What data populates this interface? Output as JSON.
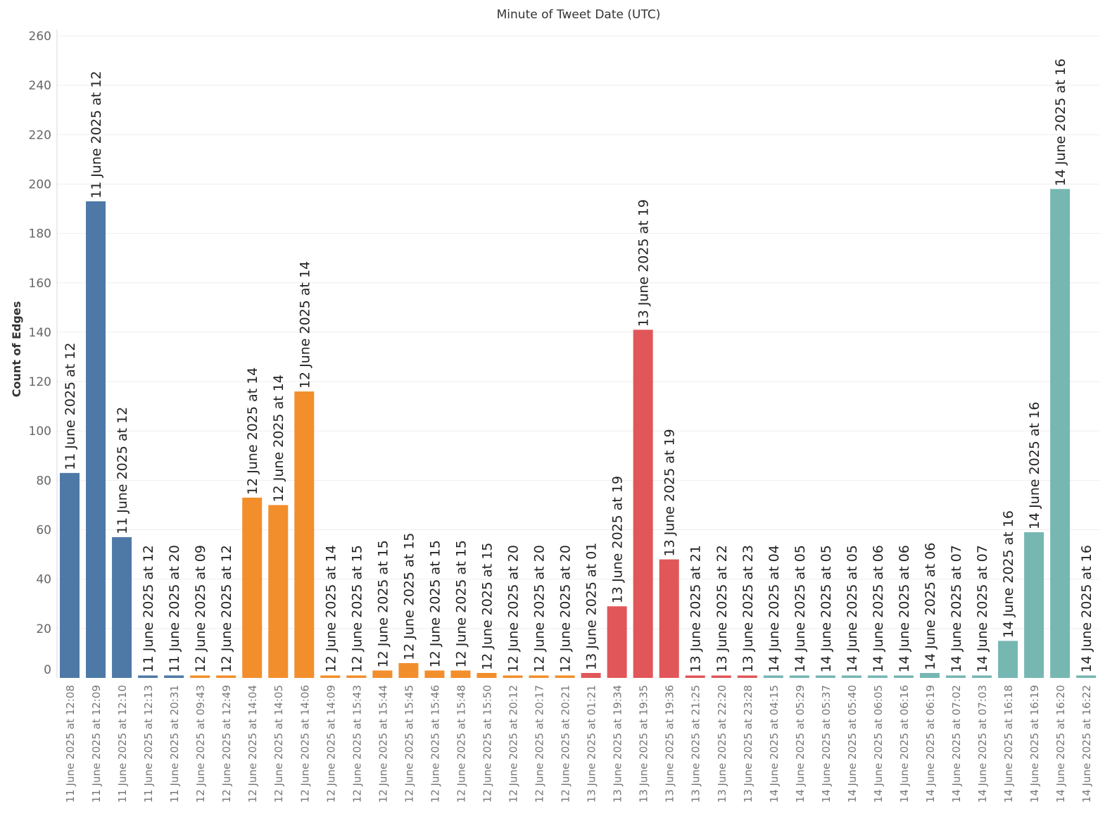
{
  "chart_data": {
    "type": "bar",
    "title": "Minute of Tweet Date (UTC)",
    "ylabel": "Count of Edges",
    "ylim": [
      0,
      260
    ],
    "yticks": [
      0,
      20,
      40,
      60,
      80,
      100,
      120,
      140,
      160,
      180,
      200,
      220,
      240,
      260
    ],
    "grid": true,
    "colors": {
      "11 June": "#4e79a7",
      "12 June": "#f28e2b",
      "13 June": "#e15759",
      "14 June": "#76b7b2"
    },
    "bars": [
      {
        "category": "11 June 2025 at 12:08",
        "label": "11 June 2025 at 12",
        "value": 83,
        "group": "11 June"
      },
      {
        "category": "11 June 2025 at 12:09",
        "label": "11 June 2025 at 12",
        "value": 193,
        "group": "11 June"
      },
      {
        "category": "11 June 2025 at 12:10",
        "label": "11 June 2025 at 12",
        "value": 57,
        "group": "11 June"
      },
      {
        "category": "11 June 2025 at 12:13",
        "label": "11 June 2025 at 12",
        "value": 1,
        "group": "11 June"
      },
      {
        "category": "11 June 2025 at 20:31",
        "label": "11 June 2025 at 20",
        "value": 1,
        "group": "11 June"
      },
      {
        "category": "12 June 2025 at 09:43",
        "label": "12 June 2025 at 09",
        "value": 1,
        "group": "12 June"
      },
      {
        "category": "12 June 2025 at 12:49",
        "label": "12 June 2025 at 12",
        "value": 1,
        "group": "12 June"
      },
      {
        "category": "12 June 2025 at 14:04",
        "label": "12 June 2025 at 14",
        "value": 73,
        "group": "12 June"
      },
      {
        "category": "12 June 2025 at 14:05",
        "label": "12 June 2025 at 14",
        "value": 70,
        "group": "12 June"
      },
      {
        "category": "12 June 2025 at 14:06",
        "label": "12 June 2025 at 14",
        "value": 116,
        "group": "12 June"
      },
      {
        "category": "12 June 2025 at 14:09",
        "label": "12 June 2025 at 14",
        "value": 1,
        "group": "12 June"
      },
      {
        "category": "12 June 2025 at 15:43",
        "label": "12 June 2025 at 15",
        "value": 1,
        "group": "12 June"
      },
      {
        "category": "12 June 2025 at 15:44",
        "label": "12 June 2025 at 15",
        "value": 3,
        "group": "12 June"
      },
      {
        "category": "12 June 2025 at 15:45",
        "label": "12 June 2025 at 15",
        "value": 6,
        "group": "12 June"
      },
      {
        "category": "12 June 2025 at 15:46",
        "label": "12 June 2025 at 15",
        "value": 3,
        "group": "12 June"
      },
      {
        "category": "12 June 2025 at 15:48",
        "label": "12 June 2025 at 15",
        "value": 3,
        "group": "12 June"
      },
      {
        "category": "12 June 2025 at 15:50",
        "label": "12 June 2025 at 15",
        "value": 2,
        "group": "12 June"
      },
      {
        "category": "12 June 2025 at 20:12",
        "label": "12 June 2025 at 20",
        "value": 1,
        "group": "12 June"
      },
      {
        "category": "12 June 2025 at 20:17",
        "label": "12 June 2025 at 20",
        "value": 1,
        "group": "12 June"
      },
      {
        "category": "12 June 2025 at 20:21",
        "label": "12 June 2025 at 20",
        "value": 1,
        "group": "12 June"
      },
      {
        "category": "13 June 2025 at 01:21",
        "label": "13 June 2025 at 01",
        "value": 2,
        "group": "13 June"
      },
      {
        "category": "13 June 2025 at 19:34",
        "label": "13 June 2025 at 19",
        "value": 29,
        "group": "13 June"
      },
      {
        "category": "13 June 2025 at 19:35",
        "label": "13 June 2025 at 19",
        "value": 141,
        "group": "13 June"
      },
      {
        "category": "13 June 2025 at 19:36",
        "label": "13 June 2025 at 19",
        "value": 48,
        "group": "13 June"
      },
      {
        "category": "13 June 2025 at 21:25",
        "label": "13 June 2025 at 21",
        "value": 1,
        "group": "13 June"
      },
      {
        "category": "13 June 2025 at 22:20",
        "label": "13 June 2025 at 22",
        "value": 1,
        "group": "13 June"
      },
      {
        "category": "13 June 2025 at 23:28",
        "label": "13 June 2025 at 23",
        "value": 1,
        "group": "13 June"
      },
      {
        "category": "14 June 2025 at 04:15",
        "label": "14 June 2025 at 04",
        "value": 1,
        "group": "14 June"
      },
      {
        "category": "14 June 2025 at 05:29",
        "label": "14 June 2025 at 05",
        "value": 1,
        "group": "14 June"
      },
      {
        "category": "14 June 2025 at 05:37",
        "label": "14 June 2025 at 05",
        "value": 1,
        "group": "14 June"
      },
      {
        "category": "14 June 2025 at 05:40",
        "label": "14 June 2025 at 05",
        "value": 1,
        "group": "14 June"
      },
      {
        "category": "14 June 2025 at 06:05",
        "label": "14 June 2025 at 06",
        "value": 1,
        "group": "14 June"
      },
      {
        "category": "14 June 2025 at 06:16",
        "label": "14 June 2025 at 06",
        "value": 1,
        "group": "14 June"
      },
      {
        "category": "14 June 2025 at 06:19",
        "label": "14 June 2025 at 06",
        "value": 2,
        "group": "14 June"
      },
      {
        "category": "14 June 2025 at 07:02",
        "label": "14 June 2025 at 07",
        "value": 1,
        "group": "14 June"
      },
      {
        "category": "14 June 2025 at 07:03",
        "label": "14 June 2025 at 07",
        "value": 1,
        "group": "14 June"
      },
      {
        "category": "14 June 2025 at 16:18",
        "label": "14 June 2025 at 16",
        "value": 15,
        "group": "14 June"
      },
      {
        "category": "14 June 2025 at 16:19",
        "label": "14 June 2025 at 16",
        "value": 59,
        "group": "14 June"
      },
      {
        "category": "14 June 2025 at 16:20",
        "label": "14 June 2025 at 16",
        "value": 198,
        "group": "14 June"
      },
      {
        "category": "14 June 2025 at 16:22",
        "label": "14 June 2025 at 16",
        "value": 1,
        "group": "14 June"
      }
    ]
  }
}
